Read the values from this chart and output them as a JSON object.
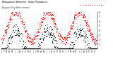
{
  "title": "Milwaukee Weather  Solar Radiation",
  "subtitle": "Avg per Day W/m²/minute",
  "bg_color": "#ffffff",
  "plot_bg": "#ffffff",
  "grid_color": "#bbbbbb",
  "dot_color_red": "#ff0000",
  "dot_color_black": "#000000",
  "legend_box_color": "#ff0000",
  "ylim": [
    0,
    8
  ],
  "ytick_labels": [
    "1",
    "2",
    "3",
    "4",
    "5",
    "6",
    "7",
    "8"
  ],
  "ytick_vals": [
    1,
    2,
    3,
    4,
    5,
    6,
    7,
    8
  ],
  "n_days_per_year": 365,
  "n_years": 3,
  "month_ticks": [
    0,
    31,
    59,
    90,
    120,
    151,
    181,
    212,
    243,
    273,
    304,
    334,
    365,
    396,
    424,
    455,
    485,
    516,
    546,
    577,
    608,
    638,
    669,
    699,
    730,
    761,
    789,
    820,
    850,
    881,
    911,
    942,
    973,
    1003,
    1034,
    1064
  ],
  "month_labels": [
    "J",
    "F",
    "M",
    "A",
    "M",
    "J",
    "J",
    "A",
    "S",
    "O",
    "N",
    "D",
    "J",
    "F",
    "M",
    "A",
    "M",
    "J",
    "J",
    "A",
    "S",
    "O",
    "N",
    "D",
    "J",
    "F",
    "M",
    "A",
    "M",
    "J",
    "J",
    "A",
    "S",
    "O",
    "N",
    "D"
  ]
}
